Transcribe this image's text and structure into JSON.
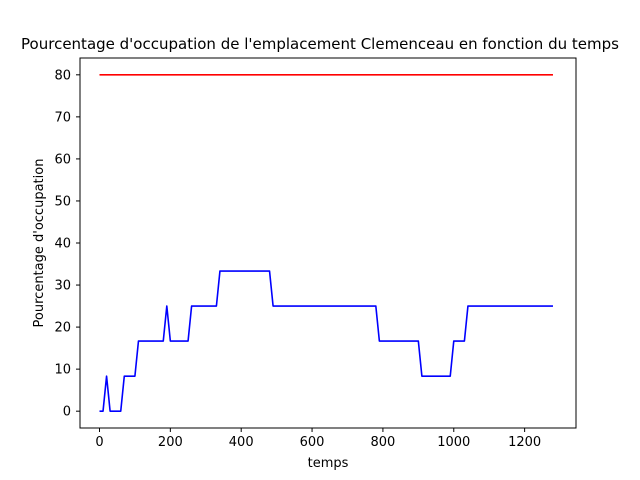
{
  "chart_data": {
    "type": "line",
    "title": "Pourcentage d'occupation de l'emplacement Clemenceau en fonction du temps",
    "xlabel": "temps",
    "ylabel": "Pourcentage d'occupation",
    "xlim": [
      -55,
      1345
    ],
    "ylim": [
      -4,
      84
    ],
    "xticks": [
      0,
      200,
      400,
      600,
      800,
      1000,
      1200
    ],
    "yticks": [
      0,
      10,
      20,
      30,
      40,
      50,
      60,
      70,
      80
    ],
    "grid": false,
    "legend": "none",
    "series": [
      {
        "color": "#0000ff",
        "x": [
          0,
          10,
          20,
          30,
          40,
          50,
          60,
          70,
          80,
          90,
          100,
          110,
          120,
          130,
          140,
          150,
          160,
          170,
          180,
          190,
          200,
          210,
          220,
          230,
          240,
          250,
          260,
          270,
          280,
          290,
          300,
          310,
          320,
          330,
          340,
          350,
          360,
          370,
          380,
          390,
          400,
          410,
          420,
          430,
          440,
          450,
          460,
          470,
          480,
          490,
          500,
          510,
          520,
          530,
          540,
          550,
          560,
          570,
          580,
          590,
          600,
          610,
          620,
          630,
          640,
          650,
          660,
          670,
          680,
          690,
          700,
          710,
          720,
          730,
          740,
          750,
          760,
          770,
          780,
          790,
          800,
          810,
          820,
          830,
          840,
          850,
          860,
          870,
          880,
          890,
          900,
          910,
          920,
          930,
          940,
          950,
          960,
          970,
          980,
          990,
          1000,
          1010,
          1020,
          1030,
          1040,
          1050,
          1060,
          1070,
          1080,
          1090,
          1100,
          1110,
          1120,
          1130,
          1140,
          1150,
          1160,
          1170,
          1180,
          1190,
          1200,
          1210,
          1220,
          1230,
          1240,
          1250,
          1260,
          1270,
          1280
        ],
        "y": [
          0,
          0,
          8.33,
          0,
          0,
          0,
          0,
          8.33,
          8.33,
          8.33,
          8.33,
          16.67,
          16.67,
          16.67,
          16.67,
          16.67,
          16.67,
          16.67,
          16.67,
          25,
          16.67,
          16.67,
          16.67,
          16.67,
          16.67,
          16.67,
          25,
          25,
          25,
          25,
          25,
          25,
          25,
          25,
          33.33,
          33.33,
          33.33,
          33.33,
          33.33,
          33.33,
          33.33,
          33.33,
          33.33,
          33.33,
          33.33,
          33.33,
          33.33,
          33.33,
          33.33,
          25,
          25,
          25,
          25,
          25,
          25,
          25,
          25,
          25,
          25,
          25,
          25,
          25,
          25,
          25,
          25,
          25,
          25,
          25,
          25,
          25,
          25,
          25,
          25,
          25,
          25,
          25,
          25,
          25,
          25,
          16.67,
          16.67,
          16.67,
          16.67,
          16.67,
          16.67,
          16.67,
          16.67,
          16.67,
          16.67,
          16.67,
          16.67,
          8.33,
          8.33,
          8.33,
          8.33,
          8.33,
          8.33,
          8.33,
          8.33,
          8.33,
          16.67,
          16.67,
          16.67,
          16.67,
          25,
          25,
          25,
          25,
          25,
          25,
          25,
          25,
          25,
          25,
          25,
          25,
          25,
          25,
          25,
          25,
          25,
          25,
          25,
          25,
          25,
          25,
          25,
          25,
          25
        ]
      },
      {
        "color": "#ff0000",
        "x": [
          0,
          1280
        ],
        "y": [
          80,
          80
        ]
      }
    ]
  }
}
